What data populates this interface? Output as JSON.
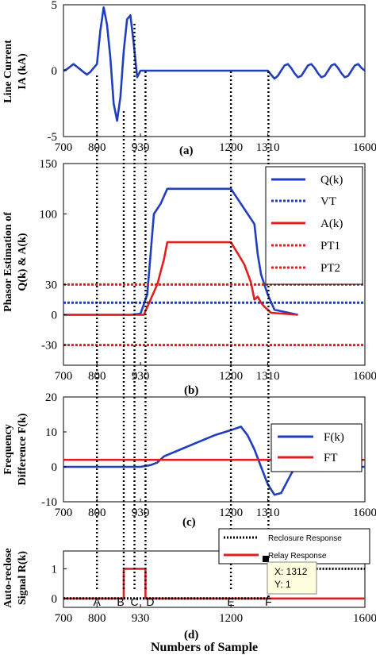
{
  "chart_data": [
    {
      "type": "line",
      "panel": "(a)",
      "ylabel_lines": [
        "Line Current",
        "IA (kA)"
      ],
      "x_ticks": [
        "700",
        "800",
        "930",
        "1200",
        "1310",
        "1600"
      ],
      "y_ticks": [
        "5",
        "0",
        "-5"
      ],
      "xlim": [
        700,
        1600
      ],
      "ylim": [
        -5,
        5
      ],
      "series": [
        {
          "color": "#1f3fbf",
          "x": [
            700,
            710,
            720,
            730,
            740,
            750,
            760,
            770,
            780,
            790,
            800,
            810,
            820,
            830,
            840,
            850,
            860,
            870,
            880,
            890,
            900,
            910,
            920,
            930,
            940,
            950,
            1000,
            1100,
            1200,
            1300,
            1310,
            1320,
            1330,
            1340,
            1350,
            1360,
            1370,
            1380,
            1390,
            1400,
            1410,
            1420,
            1430,
            1440,
            1450,
            1460,
            1470,
            1480,
            1490,
            1500,
            1510,
            1520,
            1530,
            1540,
            1550,
            1560,
            1570,
            1580,
            1590,
            1600
          ],
          "values": [
            0,
            0.1,
            0.3,
            0.5,
            0.3,
            0.1,
            -0.1,
            -0.3,
            -0.1,
            0.2,
            0.5,
            3.0,
            4.8,
            3.5,
            1.0,
            -2.5,
            -3.8,
            -2.0,
            1.5,
            3.9,
            4.2,
            2.0,
            -0.5,
            0,
            0,
            0,
            0,
            0,
            0,
            0,
            0,
            -0.3,
            -0.6,
            -0.4,
            0,
            0.4,
            0.5,
            0.2,
            -0.2,
            -0.5,
            -0.4,
            0,
            0.4,
            0.5,
            0.2,
            -0.2,
            -0.5,
            -0.4,
            0,
            0.4,
            0.5,
            0.2,
            -0.2,
            -0.5,
            -0.4,
            0,
            0.4,
            0.5,
            0.2,
            0
          ]
        }
      ]
    },
    {
      "type": "line",
      "panel": "(b)",
      "ylabel_lines": [
        "Phasor Estimation of",
        "Q(k) & A(k)"
      ],
      "x_ticks": [
        "700",
        "800",
        "930",
        "1200",
        "1310",
        "1600"
      ],
      "y_ticks": [
        "150",
        "100",
        "30",
        "0",
        "-30"
      ],
      "xlim": [
        700,
        1600
      ],
      "ylim": [
        -50,
        150
      ],
      "legend": [
        "Q(k)",
        "VT",
        "A(k)",
        "PT1",
        "PT2"
      ],
      "series": [
        {
          "name": "Q(k)",
          "color": "#1f3fbf",
          "x": [
            700,
            900,
            930,
            950,
            960,
            970,
            990,
            1010,
            1040,
            1200,
            1240,
            1270,
            1280,
            1290,
            1300,
            1310,
            1330,
            1400
          ],
          "values": [
            0,
            0,
            1,
            20,
            60,
            100,
            110,
            125,
            125,
            125,
            105,
            90,
            60,
            40,
            30,
            20,
            5,
            0
          ]
        },
        {
          "name": "VT",
          "color": "#1f3fbf",
          "dash": true,
          "x": [
            700,
            1600
          ],
          "values": [
            12,
            12
          ]
        },
        {
          "name": "A(k)",
          "color": "#e02020",
          "x": [
            700,
            930,
            940,
            960,
            980,
            1000,
            1010,
            1040,
            1200,
            1240,
            1260,
            1270,
            1280,
            1290,
            1300,
            1320,
            1400
          ],
          "values": [
            0,
            0,
            0,
            15,
            30,
            55,
            72,
            72,
            72,
            50,
            32,
            15,
            18,
            12,
            8,
            2,
            0
          ]
        },
        {
          "name": "PT1",
          "color": "#e02020",
          "dash": true,
          "x": [
            700,
            1600
          ],
          "values": [
            30,
            30
          ]
        },
        {
          "name": "PT2",
          "color": "#e02020",
          "dash": true,
          "x": [
            700,
            1600
          ],
          "values": [
            -30,
            -30
          ]
        }
      ]
    },
    {
      "type": "line",
      "panel": "(c)",
      "ylabel_lines": [
        "Frequency",
        "Difference F(k)"
      ],
      "x_ticks": [
        "700",
        "800",
        "930",
        "1200",
        "1310",
        "1600"
      ],
      "y_ticks": [
        "20",
        "10",
        "0",
        "-10"
      ],
      "xlim": [
        700,
        1600
      ],
      "ylim": [
        -10,
        20
      ],
      "legend": [
        "F(k)",
        "FT"
      ],
      "series": [
        {
          "name": "F(k)",
          "color": "#1f3fbf",
          "x": [
            700,
            900,
            930,
            960,
            980,
            1000,
            1050,
            1100,
            1150,
            1200,
            1230,
            1250,
            1270,
            1290,
            1310,
            1330,
            1350,
            1380,
            1400,
            1450,
            1500,
            1600
          ],
          "values": [
            0,
            0,
            0,
            0.5,
            1.2,
            3.0,
            5.0,
            7.0,
            9.0,
            10.5,
            11.5,
            9.0,
            5.0,
            0,
            -5.0,
            -8.0,
            -7.5,
            -2.0,
            1.0,
            0.2,
            0,
            0
          ]
        },
        {
          "name": "FT",
          "color": "#e02020",
          "x": [
            700,
            1600
          ],
          "values": [
            2,
            2
          ]
        }
      ]
    },
    {
      "type": "line",
      "panel": "(d)",
      "ylabel_lines": [
        "Auto-reclose",
        "Signal R(k)"
      ],
      "xlabel": "Numbers of Sample",
      "x_ticks": [
        "700",
        "800",
        "930",
        "1200",
        "1600"
      ],
      "y_ticks": [
        "1",
        "0"
      ],
      "xlim": [
        700,
        1600
      ],
      "ylim": [
        -0.3,
        1.6
      ],
      "legend": [
        "Reclosure Response",
        "Relay Response"
      ],
      "series": [
        {
          "name": "Relay Response",
          "color": "#e02020",
          "x": [
            700,
            880,
            880,
            945,
            945,
            1600
          ],
          "values": [
            0,
            0,
            1,
            1,
            0,
            0
          ]
        },
        {
          "name": "Reclosure Response",
          "color": "#000000",
          "dash": true,
          "x": [
            700,
            1312,
            1312,
            1600
          ],
          "values": [
            0,
            0,
            1,
            1
          ]
        }
      ],
      "datatip": {
        "x_label": "X: 1312",
        "y_label": "Y: 1",
        "x": 1312,
        "y": 1
      }
    }
  ],
  "panel_labels": [
    "(a)",
    "(b)",
    "(c)",
    "(d)"
  ],
  "markers": [
    "A",
    "B",
    "C",
    "D",
    "E",
    "F"
  ],
  "xlabel": "Numbers of Sample"
}
